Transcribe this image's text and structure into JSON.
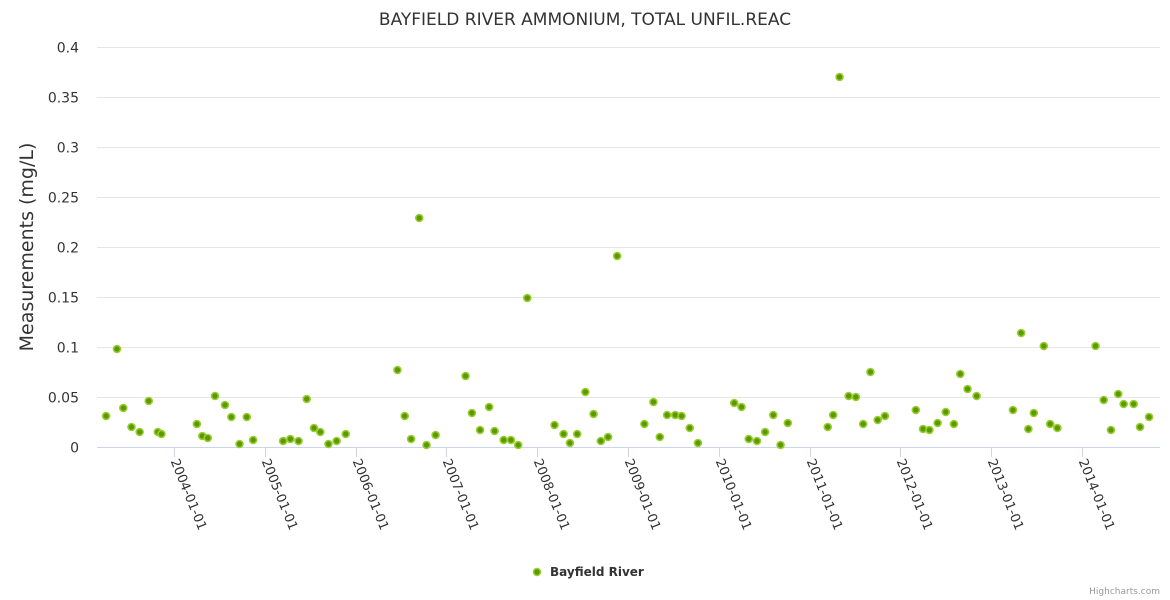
{
  "chart_data": {
    "type": "scatter",
    "title": "BAYFIELD RIVER AMMONIUM, TOTAL UNFIL.REAC",
    "xlabel": "",
    "ylabel": "Measurements (mg/L)",
    "xlim": [
      2003.15,
      2014.86
    ],
    "ylim": [
      0,
      0.4
    ],
    "x_tick_values": [
      2004,
      2005,
      2006,
      2007,
      2008,
      2009,
      2010,
      2011,
      2012,
      2013,
      2014
    ],
    "x_tick_labels": [
      "2004-01-01",
      "2005-01-01",
      "2006-01-01",
      "2007-01-01",
      "2008-01-01",
      "2009-01-01",
      "2010-01-01",
      "2011-01-01",
      "2012-01-01",
      "2013-01-01",
      "2014-01-01"
    ],
    "y_ticks": [
      0,
      0.05,
      0.1,
      0.15,
      0.2,
      0.25,
      0.3,
      0.35,
      0.4
    ],
    "y_tick_labels": [
      "0",
      "0.05",
      "0.1",
      "0.15",
      "0.2",
      "0.25",
      "0.3",
      "0.35",
      "0.4"
    ],
    "grid": true,
    "legend_position": "bottom-center",
    "series": [
      {
        "name": "Bayfield River",
        "color": "#5a9a00",
        "border_color": "#9acd32",
        "points": [
          [
            2003.25,
            0.031
          ],
          [
            2003.37,
            0.098
          ],
          [
            2003.44,
            0.039
          ],
          [
            2003.53,
            0.02
          ],
          [
            2003.62,
            0.015
          ],
          [
            2003.72,
            0.046
          ],
          [
            2003.82,
            0.015
          ],
          [
            2003.86,
            0.013
          ],
          [
            2004.25,
            0.023
          ],
          [
            2004.31,
            0.011
          ],
          [
            2004.37,
            0.009
          ],
          [
            2004.45,
            0.051
          ],
          [
            2004.56,
            0.042
          ],
          [
            2004.63,
            0.03
          ],
          [
            2004.72,
            0.003
          ],
          [
            2004.8,
            0.03
          ],
          [
            2004.87,
            0.007
          ],
          [
            2005.2,
            0.006
          ],
          [
            2005.28,
            0.008
          ],
          [
            2005.37,
            0.006
          ],
          [
            2005.46,
            0.048
          ],
          [
            2005.54,
            0.019
          ],
          [
            2005.61,
            0.015
          ],
          [
            2005.7,
            0.003
          ],
          [
            2005.79,
            0.006
          ],
          [
            2005.89,
            0.013
          ],
          [
            2006.46,
            0.077
          ],
          [
            2006.54,
            0.031
          ],
          [
            2006.61,
            0.008
          ],
          [
            2006.7,
            0.229
          ],
          [
            2006.78,
            0.002
          ],
          [
            2006.88,
            0.012
          ],
          [
            2007.21,
            0.071
          ],
          [
            2007.28,
            0.034
          ],
          [
            2007.37,
            0.017
          ],
          [
            2007.47,
            0.04
          ],
          [
            2007.53,
            0.016
          ],
          [
            2007.63,
            0.007
          ],
          [
            2007.71,
            0.007
          ],
          [
            2007.79,
            0.002
          ],
          [
            2007.89,
            0.149
          ],
          [
            2008.19,
            0.022
          ],
          [
            2008.29,
            0.013
          ],
          [
            2008.36,
            0.004
          ],
          [
            2008.44,
            0.013
          ],
          [
            2008.53,
            0.055
          ],
          [
            2008.62,
            0.033
          ],
          [
            2008.7,
            0.006
          ],
          [
            2008.78,
            0.01
          ],
          [
            2008.88,
            0.191
          ],
          [
            2009.18,
            0.023
          ],
          [
            2009.28,
            0.045
          ],
          [
            2009.35,
            0.01
          ],
          [
            2009.43,
            0.032
          ],
          [
            2009.52,
            0.032
          ],
          [
            2009.59,
            0.031
          ],
          [
            2009.68,
            0.019
          ],
          [
            2009.77,
            0.004
          ],
          [
            2010.17,
            0.044
          ],
          [
            2010.25,
            0.04
          ],
          [
            2010.33,
            0.008
          ],
          [
            2010.42,
            0.006
          ],
          [
            2010.51,
            0.015
          ],
          [
            2010.6,
            0.032
          ],
          [
            2010.68,
            0.002
          ],
          [
            2010.76,
            0.024
          ],
          [
            2011.2,
            0.02
          ],
          [
            2011.26,
            0.032
          ],
          [
            2011.33,
            0.37
          ],
          [
            2011.43,
            0.051
          ],
          [
            2011.51,
            0.05
          ],
          [
            2011.59,
            0.023
          ],
          [
            2011.67,
            0.075
          ],
          [
            2011.75,
            0.027
          ],
          [
            2011.83,
            0.031
          ],
          [
            2012.17,
            0.037
          ],
          [
            2012.25,
            0.018
          ],
          [
            2012.32,
            0.017
          ],
          [
            2012.41,
            0.024
          ],
          [
            2012.5,
            0.035
          ],
          [
            2012.59,
            0.023
          ],
          [
            2012.66,
            0.073
          ],
          [
            2012.74,
            0.058
          ],
          [
            2012.84,
            0.051
          ],
          [
            2013.24,
            0.037
          ],
          [
            2013.33,
            0.114
          ],
          [
            2013.41,
            0.018
          ],
          [
            2013.47,
            0.034
          ],
          [
            2013.58,
            0.101
          ],
          [
            2013.65,
            0.023
          ],
          [
            2013.73,
            0.019
          ],
          [
            2014.15,
            0.101
          ],
          [
            2014.24,
            0.047
          ],
          [
            2014.32,
            0.017
          ],
          [
            2014.4,
            0.053
          ],
          [
            2014.46,
            0.043
          ],
          [
            2014.57,
            0.043
          ],
          [
            2014.64,
            0.02
          ],
          [
            2014.74,
            0.03
          ]
        ]
      }
    ],
    "credits": "Highcharts.com"
  }
}
